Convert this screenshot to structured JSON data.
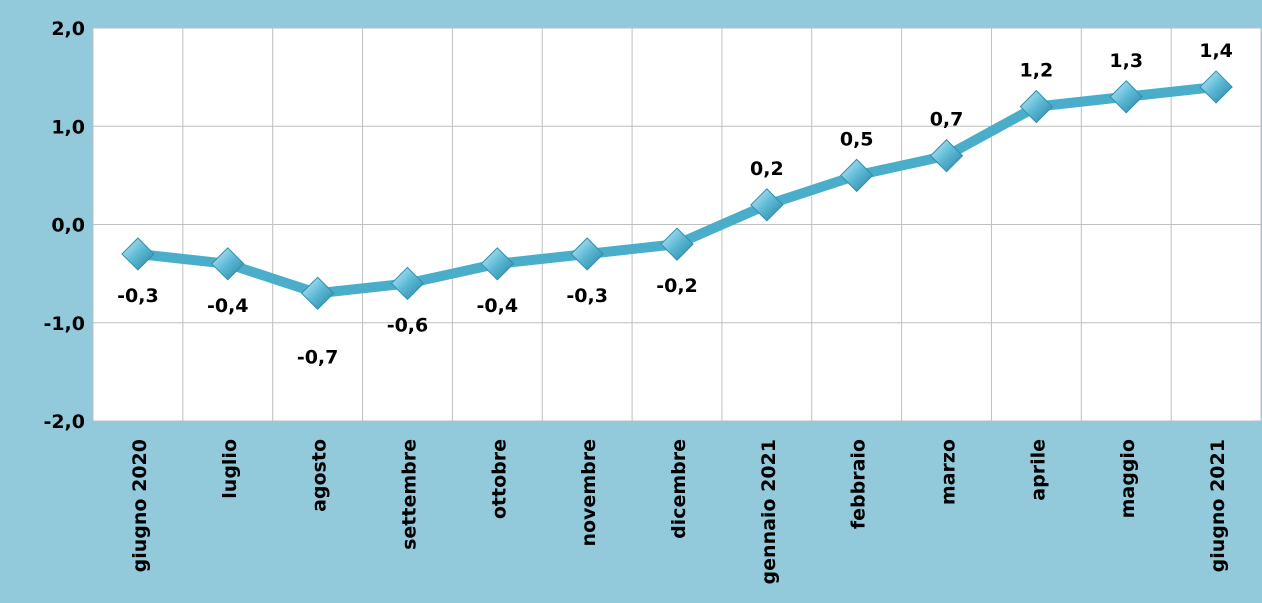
{
  "chart_data": {
    "type": "line",
    "title": "",
    "xlabel": "",
    "ylabel": "",
    "categories": [
      "giugno 2020",
      "luglio",
      "agosto",
      "settembre",
      "ottobre",
      "novembre",
      "dicembre",
      "gennaio 2021",
      "febbraio",
      "marzo",
      "aprile",
      "maggio",
      "giugno 2021"
    ],
    "series": [
      {
        "values": [
          -0.3,
          -0.4,
          -0.7,
          -0.6,
          -0.4,
          -0.3,
          -0.2,
          0.2,
          0.5,
          0.7,
          1.2,
          1.3,
          1.4
        ],
        "labels": [
          "-0,3",
          "-0,4",
          "-0,7",
          "-0,6",
          "-0,4",
          "-0,3",
          "-0,2",
          "0,2",
          "0,5",
          "0,7",
          "1,2",
          "1,3",
          "1,4"
        ],
        "color": "#4aaecb",
        "marker": "diamond"
      }
    ],
    "yticks": [
      2.0,
      1.0,
      0.0,
      -1.0,
      -2.0
    ],
    "ytick_labels": [
      "2,0",
      "1,0",
      "0,0",
      "-1,0",
      "-2,0"
    ],
    "ylim": [
      -2.0,
      2.0
    ],
    "grid": true,
    "legend": "none",
    "colors": {
      "background": "#92cadb",
      "plot_area": "#ffffff",
      "gridline": "#bfbfbf",
      "line": "#4aaecb",
      "marker": "#5bb9d6"
    }
  }
}
